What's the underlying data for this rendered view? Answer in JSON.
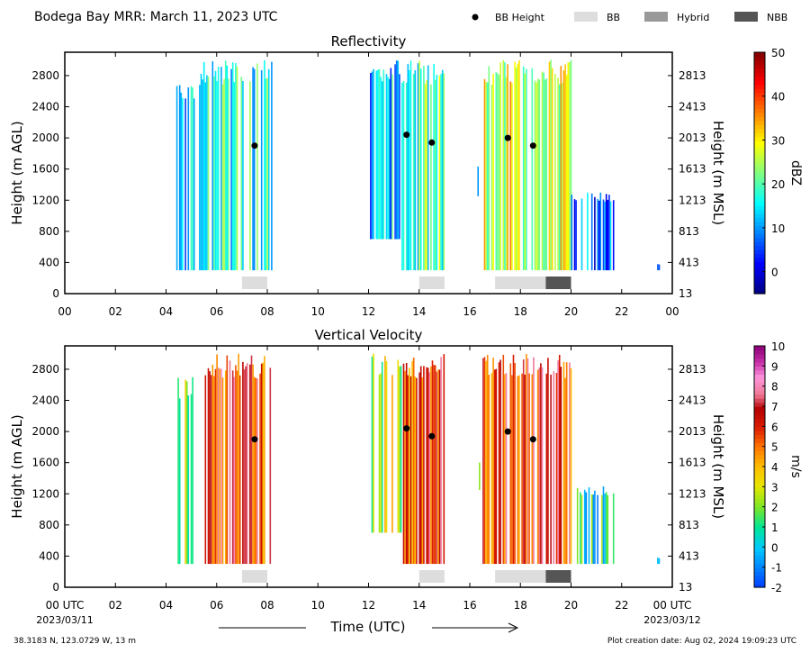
{
  "header": {
    "title": "Bodega Bay MRR:  March 11, 2023 UTC",
    "legend": [
      {
        "label": "BB Height",
        "kind": "dot",
        "color": "#000000"
      },
      {
        "label": "BB",
        "kind": "swatch",
        "color": "#dddddd"
      },
      {
        "label": "Hybrid",
        "kind": "swatch",
        "color": "#999999"
      },
      {
        "label": "NBB",
        "kind": "swatch",
        "color": "#555555"
      }
    ]
  },
  "footer": {
    "xlabel": "Time (UTC)",
    "location": "38.3183 N, 123.0729 W, 13 m",
    "creation": "Plot creation date: Aug 02, 2024 19:09:23 UTC",
    "start_time": "00 UTC",
    "start_date": "2023/03/11",
    "end_time": "00 UTC",
    "end_date": "2023/03/12"
  },
  "chart_data": [
    {
      "type": "heatmap",
      "title": "Reflectivity",
      "ylabel": "Height (m AGL)",
      "ylabel_right": "Height (m MSL)",
      "colorbar_label": "dBZ",
      "colorbar_range": [
        -5,
        50
      ],
      "colorbar_ticks": [
        "0",
        "10",
        "20",
        "30",
        "40",
        "50"
      ],
      "colorbar_tick_values": [
        0,
        10,
        20,
        30,
        40,
        50
      ],
      "xlim": [
        0,
        24
      ],
      "ylim": [
        0,
        3100
      ],
      "xticks": [
        "00",
        "02",
        "04",
        "06",
        "08",
        "10",
        "12",
        "14",
        "16",
        "18",
        "20",
        "22",
        "00"
      ],
      "yticks": [
        "0",
        "400",
        "800",
        "1200",
        "1600",
        "2000",
        "2400",
        "2800"
      ],
      "yticks_right": [
        "13",
        "413",
        "813",
        "1213",
        "1613",
        "2013",
        "2413",
        "2813"
      ],
      "bb_height_points": [
        {
          "x": 7.5,
          "y": 1900
        },
        {
          "x": 13.5,
          "y": 2040
        },
        {
          "x": 14.5,
          "y": 1940
        },
        {
          "x": 17.5,
          "y": 2000
        },
        {
          "x": 18.5,
          "y": 1900
        }
      ],
      "bb_class_bars": [
        {
          "start": 7.0,
          "end": 8.0,
          "class": "BB"
        },
        {
          "start": 14.0,
          "end": 15.0,
          "class": "BB"
        },
        {
          "start": 17.0,
          "end": 19.0,
          "class": "BB"
        },
        {
          "start": 19.0,
          "end": 20.0,
          "class": "NBB"
        }
      ],
      "precip_periods": [
        {
          "start": 4.4,
          "end": 5.1,
          "top": 2700,
          "bottom": 300,
          "level": 10
        },
        {
          "start": 5.3,
          "end": 8.2,
          "top": 3000,
          "bottom": 300,
          "level": 18
        },
        {
          "start": 12.0,
          "end": 13.3,
          "top": 3000,
          "bottom": 700,
          "level": 12
        },
        {
          "start": 13.3,
          "end": 15.0,
          "top": 3000,
          "bottom": 300,
          "level": 20
        },
        {
          "start": 16.3,
          "end": 16.4,
          "top": 1650,
          "bottom": 1250,
          "level": 8
        },
        {
          "start": 16.5,
          "end": 20.0,
          "top": 3000,
          "bottom": 300,
          "level": 27
        },
        {
          "start": 20.0,
          "end": 21.7,
          "top": 1300,
          "bottom": 300,
          "level": 6
        },
        {
          "start": 23.4,
          "end": 23.5,
          "top": 380,
          "bottom": 300,
          "level": 2
        }
      ]
    },
    {
      "type": "heatmap",
      "title": "Vertical Velocity",
      "ylabel": "Height (m AGL)",
      "ylabel_right": "Height (m MSL)",
      "colorbar_label": "m/s",
      "colorbar_range": [
        -2,
        10
      ],
      "colorbar_ticks": [
        "-2",
        "-1",
        "0",
        "1",
        "2",
        "3",
        "4",
        "5",
        "6",
        "7",
        "8",
        "9",
        "10"
      ],
      "colorbar_tick_values": [
        -2,
        -1,
        0,
        1,
        2,
        3,
        4,
        5,
        6,
        7,
        8,
        9,
        10
      ],
      "xlim": [
        0,
        24
      ],
      "ylim": [
        0,
        3100
      ],
      "xticks": [
        "00",
        "02",
        "04",
        "06",
        "08",
        "10",
        "12",
        "14",
        "16",
        "18",
        "20",
        "22",
        "00"
      ],
      "yticks": [
        "0",
        "400",
        "800",
        "1200",
        "1600",
        "2000",
        "2400",
        "2800"
      ],
      "yticks_right": [
        "13",
        "413",
        "813",
        "1213",
        "1613",
        "2013",
        "2413",
        "2813"
      ],
      "bb_height_points": [
        {
          "x": 7.5,
          "y": 1900
        },
        {
          "x": 13.5,
          "y": 2040
        },
        {
          "x": 14.5,
          "y": 1940
        },
        {
          "x": 17.5,
          "y": 2000
        },
        {
          "x": 18.5,
          "y": 1900
        }
      ],
      "bb_class_bars": [
        {
          "start": 7.0,
          "end": 8.0,
          "class": "BB"
        },
        {
          "start": 14.0,
          "end": 15.0,
          "class": "BB"
        },
        {
          "start": 17.0,
          "end": 19.0,
          "class": "BB"
        },
        {
          "start": 19.0,
          "end": 20.0,
          "class": "NBB"
        }
      ],
      "precip_periods": [
        {
          "start": 4.4,
          "end": 5.1,
          "top": 2700,
          "bottom": 300,
          "level": 1.5
        },
        {
          "start": 5.3,
          "end": 8.2,
          "top": 3000,
          "bottom": 300,
          "level": 6
        },
        {
          "start": 12.0,
          "end": 13.3,
          "top": 3000,
          "bottom": 700,
          "level": 3
        },
        {
          "start": 13.3,
          "end": 15.0,
          "top": 3000,
          "bottom": 300,
          "level": 6
        },
        {
          "start": 16.3,
          "end": 16.4,
          "top": 1650,
          "bottom": 1250,
          "level": 1
        },
        {
          "start": 16.5,
          "end": 20.0,
          "top": 3000,
          "bottom": 300,
          "level": 6
        },
        {
          "start": 20.0,
          "end": 21.7,
          "top": 1300,
          "bottom": 300,
          "level": 0.5
        },
        {
          "start": 23.4,
          "end": 23.5,
          "top": 380,
          "bottom": 300,
          "level": 0.2
        }
      ]
    }
  ]
}
